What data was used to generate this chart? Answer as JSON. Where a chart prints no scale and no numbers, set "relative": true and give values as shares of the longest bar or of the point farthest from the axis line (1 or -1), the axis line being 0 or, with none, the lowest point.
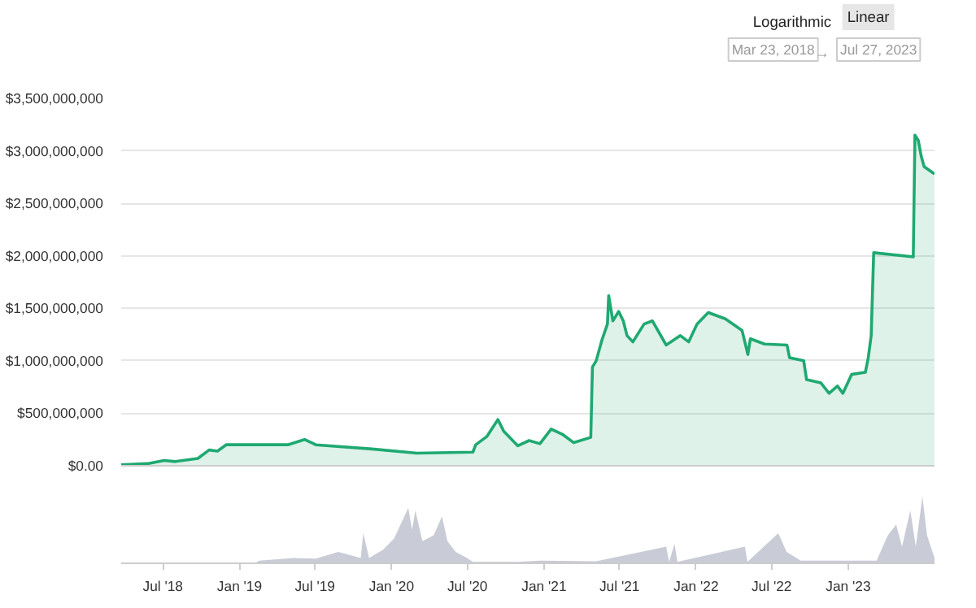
{
  "chart_data": [
    {
      "type": "area",
      "annotations": [
        "Logarithmic",
        "Linear",
        "Mar 23, 2018",
        "→",
        "Jul 27, 2023"
      ],
      "x": [
        "2018-03-23",
        "2018-05-25",
        "2018-07-04",
        "2018-07-31",
        "2018-09-23",
        "2018-10-20",
        "2018-11-09",
        "2018-11-30",
        "2019-01-09",
        "2019-04-27",
        "2019-06-06",
        "2019-07-03",
        "2019-11-15",
        "2020-03-01",
        "2020-07-14",
        "2020-07-21",
        "2020-08-17",
        "2020-09-12",
        "2020-09-26",
        "2020-10-30",
        "2020-11-26",
        "2020-12-22",
        "2021-01-18",
        "2021-02-14",
        "2021-03-13",
        "2021-04-23",
        "2021-04-27",
        "2021-05-06",
        "2021-05-20",
        "2021-06-02",
        "2021-06-05",
        "2021-06-15",
        "2021-06-29",
        "2021-07-10",
        "2021-07-19",
        "2021-08-02",
        "2021-08-29",
        "2021-09-18",
        "2021-10-21",
        "2021-11-24",
        "2021-12-14",
        "2022-01-03",
        "2022-01-30",
        "2022-03-12",
        "2022-04-21",
        "2022-05-05",
        "2022-05-11",
        "2022-06-14",
        "2022-08-07",
        "2022-08-13",
        "2022-09-16",
        "2022-09-23",
        "2022-10-27",
        "2022-11-16",
        "2022-12-06",
        "2022-12-19",
        "2023-01-09",
        "2023-02-11",
        "2023-02-18",
        "2023-02-25",
        "2023-03-03",
        "2023-06-06",
        "2023-06-10",
        "2023-06-18",
        "2023-06-25",
        "2023-07-02",
        "2023-07-27"
      ],
      "series": [
        {
          "color": "#1fa971",
          "values": [
            10000000,
            20000000,
            50000000,
            40000000,
            70000000,
            150000000,
            140000000,
            200000000,
            200000000,
            200000000,
            250000000,
            200000000,
            160000000,
            120000000,
            130000000,
            200000000,
            280000000,
            440000000,
            330000000,
            190000000,
            240000000,
            210000000,
            350000000,
            300000000,
            220000000,
            270000000,
            940000000,
            1000000000,
            1200000000,
            1350000000,
            1620000000,
            1380000000,
            1470000000,
            1380000000,
            1240000000,
            1180000000,
            1350000000,
            1380000000,
            1150000000,
            1240000000,
            1180000000,
            1350000000,
            1460000000,
            1400000000,
            1290000000,
            1060000000,
            1210000000,
            1160000000,
            1150000000,
            1030000000,
            1000000000,
            820000000,
            790000000,
            690000000,
            760000000,
            690000000,
            870000000,
            890000000,
            1030000000,
            1240000000,
            2030000000,
            1990000000,
            3150000000,
            3100000000,
            2950000000,
            2850000000,
            2780000000
          ]
        }
      ],
      "xlim": [
        "2018-03-23",
        "2023-07-27"
      ],
      "ylim": [
        0,
        3500000000
      ],
      "yticks": [
        {
          "value": 0,
          "label": "$0.00"
        },
        {
          "value": 500000000,
          "label": "$500,000,000"
        },
        {
          "value": 1000000000,
          "label": "$1,000,000,000"
        },
        {
          "value": 1500000000,
          "label": "$1,500,000,000"
        },
        {
          "value": 2000000000,
          "label": "$2,000,000,000"
        },
        {
          "value": 2500000000,
          "label": "$2,500,000,000"
        },
        {
          "value": 3000000000,
          "label": "$3,000,000,000"
        },
        {
          "value": 3500000000,
          "label": "$3,500,000,000"
        }
      ],
      "grid": "y",
      "tick_labels": "y"
    },
    {
      "type": "area",
      "relative": true,
      "x": [
        "2018-03-23",
        "2019-02-05",
        "2019-02-18",
        "2019-05-10",
        "2019-07-03",
        "2019-08-26",
        "2019-10-19",
        "2019-10-25",
        "2019-11-08",
        "2019-12-11",
        "2020-01-07",
        "2020-02-10",
        "2020-02-19",
        "2020-02-27",
        "2020-03-15",
        "2020-04-11",
        "2020-05-01",
        "2020-05-14",
        "2020-06-03",
        "2020-06-30",
        "2020-07-14",
        "2020-10-29",
        "2020-12-22",
        "2021-05-06",
        "2021-10-21",
        "2021-10-28",
        "2021-11-10",
        "2021-11-17",
        "2022-04-28",
        "2022-05-04",
        "2022-07-17",
        "2022-08-06",
        "2022-09-09",
        "2023-03-10",
        "2023-04-06",
        "2023-04-26",
        "2023-05-10",
        "2023-05-30",
        "2023-06-12",
        "2023-06-28",
        "2023-07-09",
        "2023-07-27"
      ],
      "series": [
        {
          "color": "#c9ccd6",
          "values": [
            0,
            0,
            0.04,
            0.08,
            0.07,
            0.17,
            0.08,
            0.45,
            0.08,
            0.2,
            0.37,
            0.83,
            0.5,
            0.79,
            0.33,
            0.42,
            0.7,
            0.33,
            0.17,
            0.08,
            0.02,
            0.02,
            0.04,
            0.03,
            0.25,
            0.02,
            0.29,
            0.02,
            0.25,
            0.02,
            0.45,
            0.17,
            0.04,
            0.04,
            0.42,
            0.58,
            0.25,
            0.79,
            0.25,
            1,
            0.42,
            0.08
          ]
        }
      ],
      "xlim": [
        "2018-03-23",
        "2023-07-27"
      ],
      "xticks": [
        {
          "value": "2018-07-01",
          "label": "Jul '18"
        },
        {
          "value": "2019-01-01",
          "label": "Jan '19"
        },
        {
          "value": "2019-07-01",
          "label": "Jul '19"
        },
        {
          "value": "2020-01-01",
          "label": "Jan '20"
        },
        {
          "value": "2020-07-01",
          "label": "Jul '20"
        },
        {
          "value": "2021-01-01",
          "label": "Jan '21"
        },
        {
          "value": "2021-07-01",
          "label": "Jul '21"
        },
        {
          "value": "2022-01-01",
          "label": "Jan '22"
        },
        {
          "value": "2022-07-01",
          "label": "Jul '22"
        },
        {
          "value": "2023-01-01",
          "label": "Jan '23"
        }
      ],
      "tick_labels": "x"
    }
  ]
}
